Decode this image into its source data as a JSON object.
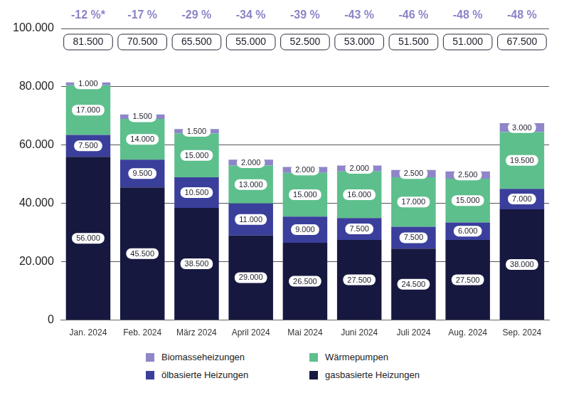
{
  "chart_data": {
    "type": "bar",
    "stacked": true,
    "data_labels": true,
    "grid": true,
    "legend": "bottom",
    "categories": [
      "Jan. 2024",
      "Feb. 2024",
      "März 2024",
      "April 2024",
      "Mai 2024",
      "Juni 2024",
      "Juli 2024",
      "Aug. 2024",
      "Sep. 2024"
    ],
    "series": [
      {
        "name": "gasbasierte Heizungen",
        "color": "#16183f",
        "values": [
          56000,
          45500,
          38500,
          29000,
          26500,
          27500,
          24500,
          27500,
          38000
        ],
        "value_labels": [
          "56.000",
          "45.500",
          "38.500",
          "29.000",
          "26.500",
          "27.500",
          "24.500",
          "27.500",
          "38.000"
        ]
      },
      {
        "name": "ölbasierte Heizungen",
        "color": "#3a3f9c",
        "values": [
          7500,
          9500,
          10500,
          11000,
          9000,
          7500,
          7500,
          6000,
          7000
        ],
        "value_labels": [
          "7.500",
          "9.500",
          "10.500",
          "11.000",
          "9.000",
          "7.500",
          "7.500",
          "6.000",
          "7.000"
        ]
      },
      {
        "name": "Wärmepumpen",
        "color": "#5dbf8c",
        "values": [
          17000,
          14000,
          15000,
          13000,
          15000,
          16000,
          17000,
          15000,
          19500
        ],
        "value_labels": [
          "17.000",
          "14.000",
          "15.000",
          "13.000",
          "15.000",
          "16.000",
          "17.000",
          "15.000",
          "19.500"
        ]
      },
      {
        "name": "Biomasseheizungen",
        "color": "#8e86c8",
        "values": [
          1000,
          1500,
          1500,
          2000,
          2000,
          2000,
          2500,
          2500,
          3000
        ],
        "value_labels": [
          "1.000",
          "1.500",
          "1.500",
          "2.000",
          "2.000",
          "2.000",
          "2.500",
          "2.500",
          "3.000"
        ]
      }
    ],
    "totals": {
      "values": [
        81500,
        70500,
        65500,
        55000,
        52500,
        53000,
        51500,
        51000,
        67500
      ],
      "value_labels": [
        "81.500",
        "70.500",
        "65.500",
        "55.000",
        "52.500",
        "53.000",
        "51.500",
        "51.000",
        "67.500"
      ]
    },
    "changes": {
      "values": [
        -12,
        -17,
        -29,
        -34,
        -39,
        -43,
        -46,
        -48,
        -48
      ],
      "value_labels": [
        "-12 %*",
        "-17 %",
        "-29 %",
        "-34 %",
        "-39 %",
        "-43 %",
        "-46 %",
        "-48 %",
        "-48 %"
      ],
      "color": "#8a84c8"
    },
    "ylim": [
      0,
      100000
    ],
    "yticks": [
      0,
      {
        "value": 20000,
        "label": "20.000"
      },
      {
        "value": 40000,
        "label": "40.000"
      },
      {
        "value": 60000,
        "label": "60.000"
      },
      {
        "value": 80000,
        "label": "80.000"
      },
      {
        "value": 100000,
        "label": "100.000"
      }
    ]
  }
}
